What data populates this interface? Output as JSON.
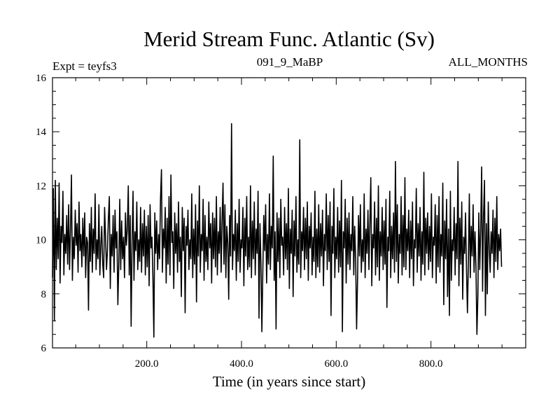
{
  "chart_data": {
    "type": "line",
    "title": "Merid Stream Func. Atlantic (Sv)",
    "subtitle_left": "Expt = teyfs3",
    "subtitle_center": "091_9_MaBP",
    "subtitle_right": "ALL_MONTHS",
    "xlabel": "Time (in years since start)",
    "ylabel": "",
    "xlim": [
      1,
      1000
    ],
    "ylim": [
      6,
      16
    ],
    "x_ticks": [
      200,
      400,
      600,
      800
    ],
    "x_tick_labels": [
      "200.0",
      "400.0",
      "600.0",
      "800.0"
    ],
    "y_ticks": [
      6,
      8,
      10,
      12,
      14,
      16
    ],
    "y_tick_labels": [
      "6",
      "8",
      "10",
      "12",
      "14",
      "16"
    ],
    "grid": false,
    "series": [
      {
        "name": "Merid Stream Func. Atlantic",
        "color": "#000000",
        "x_start": 1,
        "x_step": 2,
        "values": [
          8.6,
          11.9,
          7.0,
          12.2,
          8.9,
          10.8,
          9.3,
          12.1,
          8.4,
          10.5,
          9.9,
          11.8,
          8.7,
          10.2,
          9.5,
          10.9,
          9.1,
          11.3,
          8.9,
          10.4,
          12.4,
          8.5,
          10.1,
          9.3,
          11.1,
          9.8,
          10.6,
          8.8,
          11.4,
          9.6,
          10.2,
          9.0,
          10.8,
          9.4,
          11.0,
          8.6,
          10.1,
          9.9,
          7.4,
          10.6,
          9.2,
          11.2,
          8.8,
          10.4,
          9.5,
          11.7,
          8.9,
          10.0,
          9.3,
          11.3,
          8.7,
          9.8,
          10.5,
          9.1,
          8.6,
          11.2,
          10.1,
          8.9,
          9.6,
          10.8,
          11.6,
          8.2,
          10.2,
          9.4,
          10.9,
          8.8,
          11.1,
          9.7,
          10.3,
          7.6,
          9.1,
          11.5,
          8.9,
          10.7,
          9.3,
          10.1,
          8.6,
          11.0,
          9.8,
          10.4,
          12.0,
          8.7,
          10.9,
          6.8,
          9.9,
          11.8,
          8.5,
          10.3,
          9.6,
          11.4,
          8.9,
          10.0,
          9.2,
          11.2,
          8.8,
          10.6,
          9.4,
          11.1,
          8.7,
          10.5,
          9.0,
          10.9,
          8.3,
          11.3,
          9.7,
          10.1,
          8.6,
          6.4,
          11.0,
          9.5,
          10.7,
          8.9,
          10.2,
          9.3,
          11.5,
          12.6,
          8.8,
          10.4,
          9.7,
          11.2,
          8.4,
          10.8,
          9.1,
          11.6,
          8.7,
          12.4,
          9.9,
          10.3,
          8.2,
          11.0,
          9.5,
          10.6,
          8.8,
          11.4,
          9.2,
          10.1,
          7.9,
          11.2,
          9.6,
          10.8,
          7.3,
          10.5,
          9.8,
          11.1,
          8.9,
          10.0,
          9.3,
          11.7,
          8.6,
          10.4,
          9.1,
          11.3,
          7.7,
          10.7,
          9.4,
          12.0,
          8.8,
          10.2,
          9.6,
          11.5,
          8.5,
          10.9,
          9.2,
          10.1,
          8.9,
          11.4,
          9.7,
          10.6,
          8.4,
          11.0,
          9.3,
          10.8,
          9.0,
          11.6,
          8.7,
          10.3,
          9.5,
          11.2,
          8.8,
          10.7,
          12.1,
          9.1,
          11.3,
          8.6,
          10.5,
          9.9,
          7.8,
          10.9,
          9.4,
          14.3,
          8.9,
          10.2,
          9.6,
          11.1,
          8.5,
          10.6,
          9.2,
          11.5,
          8.8,
          10.0,
          9.7,
          11.2,
          8.3,
          10.8,
          9.4,
          11.6,
          8.9,
          10.1,
          9.0,
          12.0,
          8.6,
          10.7,
          9.3,
          11.4,
          8.7,
          10.4,
          9.5,
          11.8,
          7.1,
          10.6,
          9.2,
          6.6,
          8.8,
          10.9,
          9.6,
          11.3,
          8.4,
          10.2,
          9.1,
          11.7,
          8.9,
          10.5,
          9.7,
          13.1,
          8.5,
          10.3,
          6.7,
          11.0,
          9.2,
          10.8,
          8.6,
          11.5,
          9.8,
          10.1,
          8.7,
          11.2,
          9.3,
          10.6,
          8.9,
          11.9,
          8.2,
          10.4,
          9.5,
          11.1,
          7.9,
          10.7,
          9.4,
          11.6,
          8.8,
          10.0,
          9.1,
          13.7,
          8.6,
          10.3,
          9.6,
          11.2,
          8.9,
          10.8,
          9.3,
          11.4,
          8.5,
          10.5,
          9.7,
          11.0,
          8.7,
          10.1,
          9.2,
          11.8,
          8.6,
          10.4,
          9.0,
          11.3,
          8.8,
          10.6,
          9.4,
          11.1,
          8.3,
          10.2,
          9.6,
          11.7,
          8.9,
          10.9,
          9.2,
          11.4,
          7.2,
          10.5,
          9.5,
          11.9,
          8.6,
          10.1,
          9.3,
          11.2,
          8.8,
          10.7,
          9.0,
          12.2,
          6.6,
          10.3,
          9.7,
          11.5,
          8.4,
          10.8,
          9.1,
          11.0,
          8.9,
          10.2,
          9.6,
          11.6,
          8.7,
          10.5,
          9.3,
          6.7,
          8.5,
          10.9,
          9.4,
          11.3,
          8.8,
          10.0,
          9.2,
          11.7,
          8.6,
          10.4,
          9.5,
          11.1,
          8.9,
          10.6,
          12.3,
          8.3,
          10.2,
          9.7,
          11.4,
          8.7,
          10.8,
          9.0,
          12.0,
          8.5,
          10.3,
          9.4,
          11.2,
          8.9,
          10.7,
          9.1,
          11.5,
          7.5,
          10.1,
          9.6,
          11.8,
          8.6,
          10.5,
          9.3,
          11.0,
          8.8,
          12.9,
          9.2,
          11.3,
          8.4,
          10.2,
          9.5,
          11.6,
          8.7,
          10.9,
          9.0,
          12.3,
          8.9,
          10.4,
          9.6,
          11.1,
          8.6,
          10.7,
          9.3,
          11.4,
          8.3,
          10.0,
          9.7,
          11.9,
          8.8,
          10.6,
          9.4,
          11.2,
          8.5,
          10.3,
          9.1,
          12.5,
          8.7,
          10.8,
          9.5,
          11.0,
          8.9,
          10.5,
          9.2,
          11.7,
          8.6,
          10.1,
          9.8,
          11.3,
          8.4,
          10.9,
          9.0,
          11.6,
          8.8,
          10.2,
          9.4,
          12.1,
          7.6,
          10.7,
          9.3,
          11.5,
          7.9,
          10.4,
          7.2,
          11.8,
          8.5,
          10.0,
          9.6,
          11.2,
          8.7,
          10.6,
          9.3,
          12.9,
          8.3,
          10.8,
          9.1,
          11.4,
          7.8,
          10.1,
          9.5,
          11.0,
          8.9,
          7.3,
          9.2,
          11.7,
          8.6,
          10.5,
          9.4,
          11.3,
          8.8,
          10.3,
          9.0,
          6.5,
          7.9,
          11.0,
          8.9,
          10.4,
          12.7,
          8.1,
          10.9,
          12.2,
          7.2,
          10.6,
          8.0,
          11.4,
          9.7,
          8.8,
          10.3,
          9.5,
          11.1,
          8.6,
          10.8,
          9.2,
          11.6,
          8.9,
          10.2,
          9.6,
          10.4,
          9.0
        ]
      }
    ]
  }
}
